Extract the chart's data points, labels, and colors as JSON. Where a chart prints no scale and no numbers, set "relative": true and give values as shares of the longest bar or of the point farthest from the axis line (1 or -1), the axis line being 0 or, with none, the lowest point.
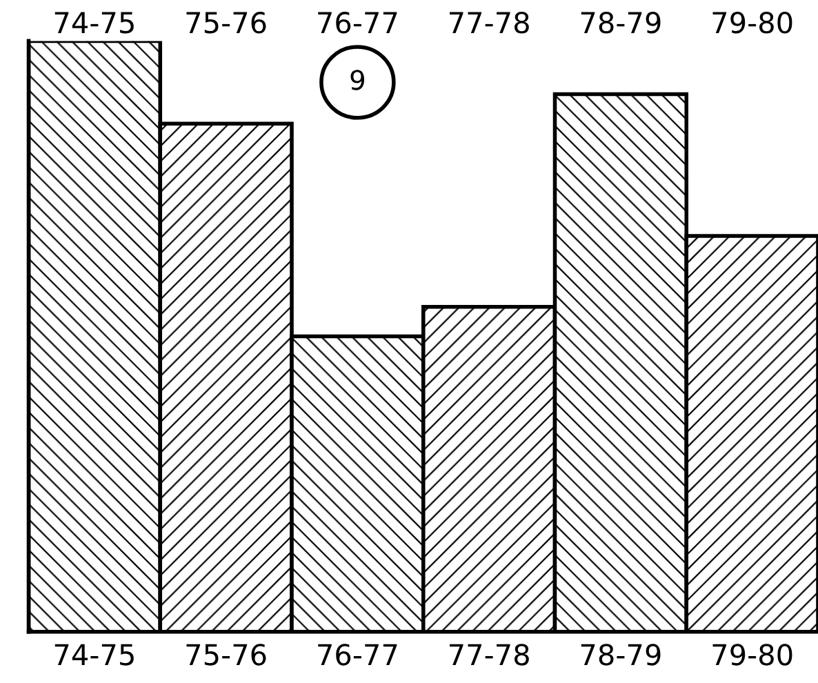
{
  "chart_data": {
    "type": "bar",
    "relative": true,
    "categories": [
      "74-75",
      "75-76",
      "76-77",
      "77-78",
      "78-79",
      "79-80"
    ],
    "values": [
      1,
      0.86,
      0.5,
      0.55,
      0.91,
      0.67
    ],
    "color": "#000000",
    "annotations": [
      "9"
    ],
    "grid": false,
    "legend": false
  }
}
